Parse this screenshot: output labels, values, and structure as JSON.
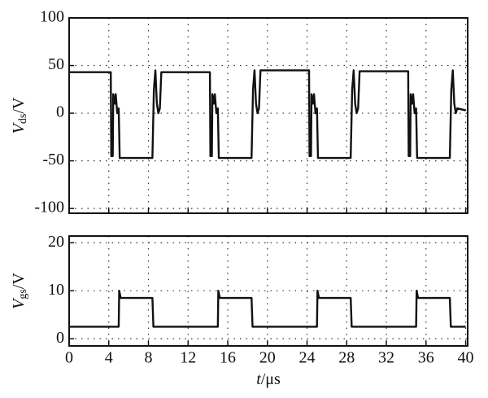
{
  "chart_data": [
    {
      "type": "line",
      "y_label_parts": [
        "V",
        "ds",
        "/V"
      ],
      "xlim": [
        0,
        40.2
      ],
      "xticks": [
        0,
        4,
        8,
        12,
        16,
        20,
        24,
        28,
        32,
        36,
        40
      ],
      "ylim": [
        -105,
        100
      ],
      "yticks": [
        -100,
        -50,
        0,
        50,
        100
      ],
      "grid": true,
      "color": "#111111",
      "x": [
        0,
        4.2,
        4.25,
        4.4,
        4.45,
        4.6,
        4.7,
        4.85,
        5.0,
        5.1,
        8.4,
        8.55,
        8.7,
        8.85,
        9.0,
        9.15,
        9.3,
        14.2,
        14.25,
        14.4,
        14.45,
        14.6,
        14.7,
        14.85,
        15.0,
        15.1,
        18.4,
        18.55,
        18.7,
        18.85,
        19.0,
        19.15,
        19.3,
        24.2,
        24.25,
        24.4,
        24.45,
        24.6,
        24.7,
        24.85,
        25.0,
        25.1,
        28.4,
        28.55,
        28.7,
        28.85,
        29.0,
        29.15,
        29.3,
        34.2,
        34.25,
        34.4,
        34.45,
        34.6,
        34.7,
        34.85,
        35.0,
        35.1,
        38.4,
        38.55,
        38.7,
        38.85,
        39.0,
        39.15,
        40
      ],
      "values": [
        43,
        43,
        -45,
        -45,
        20,
        10,
        20,
        0,
        5,
        -47,
        -47,
        25,
        45,
        10,
        0,
        5,
        43,
        43,
        -45,
        -45,
        20,
        10,
        20,
        0,
        5,
        -47,
        -47,
        25,
        45,
        10,
        0,
        5,
        45,
        45,
        -45,
        -45,
        20,
        10,
        20,
        0,
        5,
        -47,
        -47,
        25,
        45,
        10,
        0,
        5,
        44,
        44,
        -45,
        -45,
        20,
        10,
        20,
        0,
        5,
        -47,
        -47,
        25,
        45,
        10,
        0,
        5,
        3
      ]
    },
    {
      "type": "line",
      "y_label_parts": [
        "V",
        "gs",
        "/V"
      ],
      "x_label_parts": [
        "t",
        "/μs"
      ],
      "xlim": [
        0,
        40.2
      ],
      "xticks": [
        0,
        4,
        8,
        12,
        16,
        20,
        24,
        28,
        32,
        36,
        40
      ],
      "ylim": [
        -1.5,
        21.4
      ],
      "yticks": [
        0,
        10,
        20
      ],
      "grid": true,
      "color": "#111111",
      "x": [
        0,
        5.0,
        5.05,
        5.2,
        8.4,
        8.5,
        15.0,
        15.05,
        15.2,
        18.4,
        18.5,
        25.0,
        25.05,
        25.2,
        28.4,
        28.5,
        35.0,
        35.05,
        35.2,
        38.4,
        38.5,
        40
      ],
      "values": [
        2.5,
        2.5,
        10,
        8.5,
        8.5,
        2.5,
        2.5,
        10,
        8.5,
        8.5,
        2.5,
        2.5,
        10,
        8.5,
        8.5,
        2.5,
        2.5,
        10,
        8.5,
        8.5,
        2.5,
        2.5
      ]
    }
  ]
}
